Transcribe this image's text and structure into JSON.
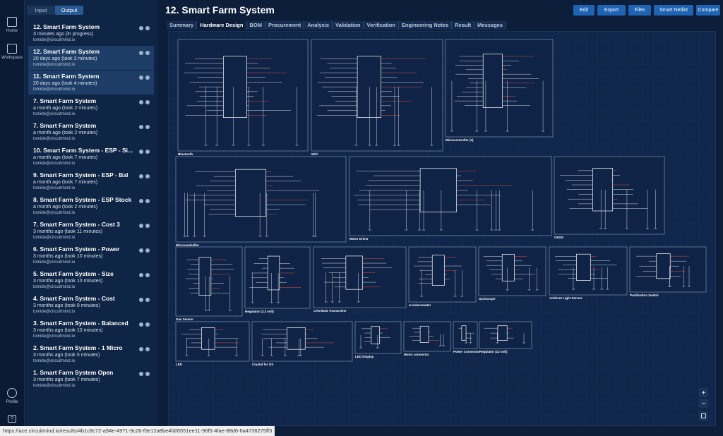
{
  "nav": {
    "items": [
      "Home",
      "Workspace"
    ],
    "profile": "Profile",
    "help": "?"
  },
  "sidebar": {
    "tabs": [
      "Input",
      "Output"
    ],
    "email": "tomide@circuitmind.io",
    "items": [
      {
        "title": "12. Smart Farm System",
        "meta": "3 minutes ago (in progress)"
      },
      {
        "title": "12. Smart Farm System",
        "meta": "20 days ago (took 3 minutes)"
      },
      {
        "title": "11. Smart Farm System",
        "meta": "20 days ago (took 4 minutes)"
      },
      {
        "title": "7. Smart Farm System",
        "meta": "a month ago (took 2 minutes)"
      },
      {
        "title": "7. Smart Farm System",
        "meta": "a month ago (took 2 minutes)"
      },
      {
        "title": "10. Smart Farm System - ESP - Si...",
        "meta": "a month ago (took 7 minutes)"
      },
      {
        "title": "9. Smart Farm System - ESP - Bal",
        "meta": "a month ago (took 7 minutes)"
      },
      {
        "title": "8. Smart Farm System - ESP Stock",
        "meta": "a month ago (took 2 minutes)"
      },
      {
        "title": "7. Smart Farm System - Cost 3",
        "meta": "3 months ago (took 11 minutes)"
      },
      {
        "title": "6. Smart Farm System - Power",
        "meta": "3 months ago (took 10 minutes)"
      },
      {
        "title": "5. Smart Farm System - Size",
        "meta": "3 months ago (took 10 minutes)"
      },
      {
        "title": "4. Smart Farm System - Cost",
        "meta": "3 months ago (took 9 minutes)"
      },
      {
        "title": "3. Smart Farm System - Balanced",
        "meta": "3 months ago (took 10 minutes)"
      },
      {
        "title": "2. Smart Farm System - 1 Micro",
        "meta": "3 months ago (took 5 minutes)"
      },
      {
        "title": "1. Smart Farm System Open",
        "meta": "3 months ago (took 7 minutes)"
      }
    ]
  },
  "header": {
    "title": "12. Smart Farm System",
    "actions": [
      "Edit",
      "Export",
      "Files",
      "Smart Netlist",
      "Compare"
    ]
  },
  "tabs": [
    "Summary",
    "Hardware Design",
    "BOM",
    "Procurement",
    "Analysis",
    "Validation",
    "Verification",
    "Engineering Notes",
    "Result",
    "Messages"
  ],
  "schematic": {
    "blocks": [
      "Bluetooth",
      "WiFi",
      "Microcontroller (2)",
      "Microcontroller",
      "Motor Driver",
      "GNSS",
      "Gas Sensor",
      "Regulator (3.3 volt)",
      "CAN BUS Transceiver",
      "Accelerometer",
      "Gyroscope",
      "Ambient Light Sensor",
      "Pushbutton Switch",
      "LED",
      "Crystal for OS",
      "LED Display",
      "Motor connector",
      "Power Connector",
      "Regulator (12 volt)"
    ],
    "zoom": [
      "+",
      "−"
    ]
  },
  "status_url": "https://ace.circuitmind.io/results/4b1c8c72-a94e-4971-9c26-f3e12a8be4fd/6551ee11-96f5-4fae-88d6-6a4736275ff3"
}
